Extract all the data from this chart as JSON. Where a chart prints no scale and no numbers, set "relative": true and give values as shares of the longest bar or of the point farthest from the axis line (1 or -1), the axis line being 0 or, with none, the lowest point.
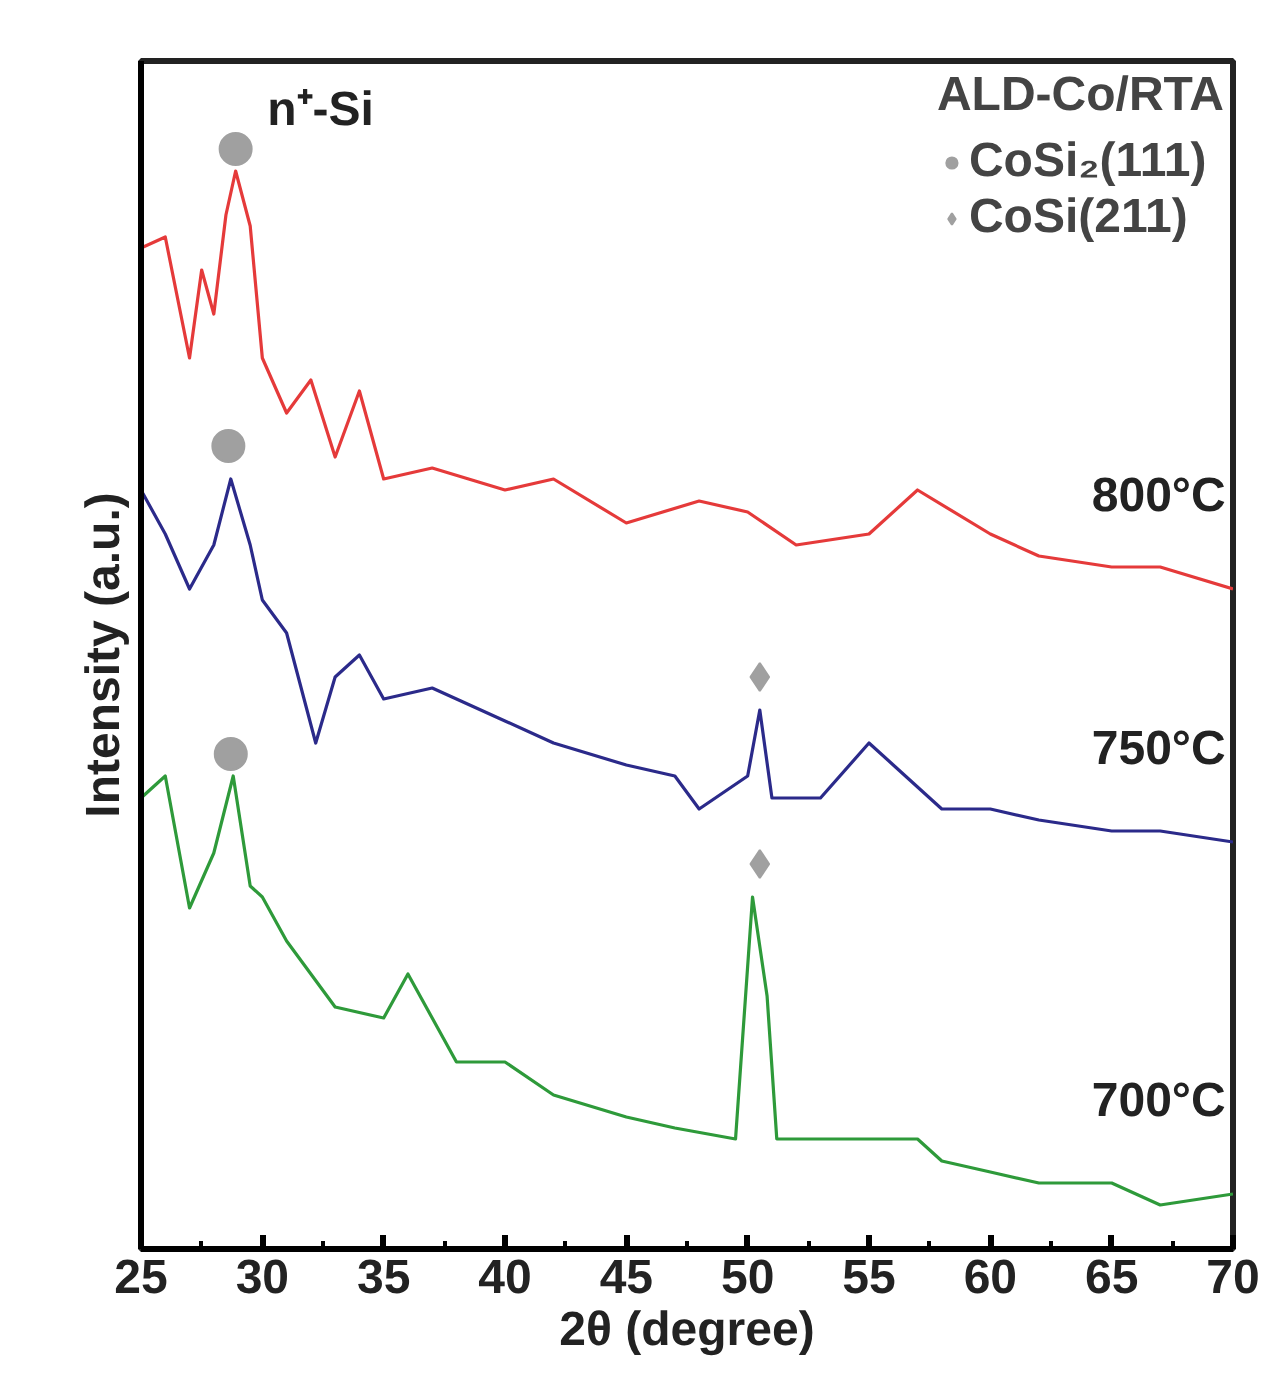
{
  "chart_data": {
    "type": "line",
    "relative": true,
    "xlabel": "2θ (degree)",
    "ylabel": "Intensity (a.u.)",
    "legend_title": "ALD-Co/RTA",
    "legend": "top right",
    "grid": false,
    "tick_labels": "x",
    "xlim": [
      25,
      70
    ],
    "xticks": [
      25,
      30,
      35,
      40,
      45,
      50,
      55,
      60,
      65,
      70
    ],
    "annotations": [
      "n⁺-Si"
    ],
    "series": [
      {
        "name": "800°C",
        "color": "#e53a3a",
        "x": [
          25,
          26,
          27,
          27.5,
          28,
          28.5,
          28.9,
          29.5,
          30,
          31,
          32,
          33,
          34,
          35,
          37,
          40,
          42,
          45,
          48,
          50,
          52,
          55,
          57,
          60,
          62,
          65,
          67,
          70
        ],
        "values": [
          0.91,
          0.92,
          0.81,
          0.89,
          0.85,
          0.94,
          0.98,
          0.93,
          0.81,
          0.76,
          0.79,
          0.72,
          0.78,
          0.7,
          0.71,
          0.69,
          0.7,
          0.66,
          0.68,
          0.67,
          0.64,
          0.65,
          0.69,
          0.65,
          0.63,
          0.62,
          0.62,
          0.6
        ]
      },
      {
        "name": "750°C",
        "color": "#2b2a8a",
        "x": [
          25,
          26,
          27,
          28,
          28.7,
          29.5,
          30,
          31,
          32.2,
          33,
          34,
          35,
          37,
          40,
          42,
          45,
          47,
          48,
          50,
          50.5,
          51,
          53,
          55,
          56,
          58,
          60,
          62,
          65,
          67,
          70
        ],
        "values": [
          0.69,
          0.65,
          0.6,
          0.64,
          0.7,
          0.64,
          0.59,
          0.56,
          0.46,
          0.52,
          0.54,
          0.5,
          0.51,
          0.48,
          0.46,
          0.44,
          0.43,
          0.4,
          0.43,
          0.49,
          0.41,
          0.41,
          0.46,
          0.44,
          0.4,
          0.4,
          0.39,
          0.38,
          0.38,
          0.37
        ]
      },
      {
        "name": "700°C",
        "color": "#2e9a3a",
        "x": [
          25,
          26,
          27,
          28,
          28.8,
          29.5,
          30,
          31,
          33,
          35,
          36,
          38,
          40,
          42,
          45,
          47,
          49.5,
          50.2,
          50.8,
          51.2,
          53,
          55,
          57,
          58,
          60,
          62,
          65,
          67,
          70
        ],
        "values": [
          0.41,
          0.43,
          0.31,
          0.36,
          0.43,
          0.33,
          0.32,
          0.28,
          0.22,
          0.21,
          0.25,
          0.17,
          0.17,
          0.14,
          0.12,
          0.11,
          0.1,
          0.32,
          0.23,
          0.1,
          0.1,
          0.1,
          0.1,
          0.08,
          0.07,
          0.06,
          0.06,
          0.04,
          0.05
        ]
      },
      {
        "name": "CoSi₂(111)",
        "type": "scatter",
        "marker": "circle",
        "color": "#a0a0a0",
        "x": [
          28.9,
          28.6,
          28.7
        ],
        "values": [
          1.0,
          0.73,
          0.45
        ]
      },
      {
        "name": "CoSi(211)",
        "type": "scatter",
        "marker": "diamond",
        "color": "#a0a0a0",
        "x": [
          50.5,
          50.5
        ],
        "values": [
          0.52,
          0.35
        ]
      }
    ]
  }
}
